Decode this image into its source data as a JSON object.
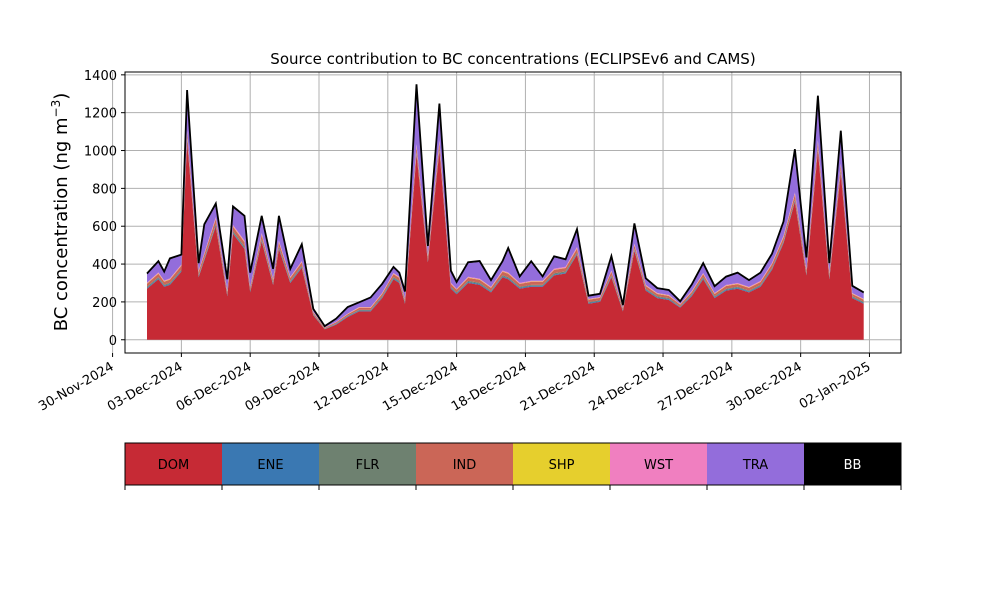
{
  "chart_data": {
    "type": "area",
    "title": "Source contribution to BC concentrations (ECLIPSEv6 and CAMS)",
    "ylabel": "BC concentration (ng m",
    "ylabel_sup": "−3",
    "ylabel_close": ")",
    "xlabel": "",
    "ylim": [
      -70,
      1415
    ],
    "xlim": [
      "2024-11-30T13:00",
      "2025-01-03T09:00"
    ],
    "grid": true,
    "stacked": true,
    "yticks": [
      0,
      200,
      400,
      600,
      800,
      1000,
      1200,
      1400
    ],
    "xticks": [
      "2024-11-30",
      "2024-12-03",
      "2024-12-06",
      "2024-12-09",
      "2024-12-12",
      "2024-12-15",
      "2024-12-18",
      "2024-12-21",
      "2024-12-24",
      "2024-12-27",
      "2024-12-30",
      "2025-01-02"
    ],
    "xtick_labels": [
      "30-Nov-2024",
      "03-Dec-2024",
      "06-Dec-2024",
      "09-Dec-2024",
      "12-Dec-2024",
      "15-Dec-2024",
      "18-Dec-2024",
      "21-Dec-2024",
      "24-Dec-2024",
      "27-Dec-2024",
      "30-Dec-2024",
      "02-Jan-2025"
    ],
    "x": [
      "2024-12-01T12:00",
      "2024-12-02T00:00",
      "2024-12-02T06:00",
      "2024-12-02T12:00",
      "2024-12-03T00:00",
      "2024-12-03T06:00",
      "2024-12-03T18:00",
      "2024-12-04T00:00",
      "2024-12-04T12:00",
      "2024-12-05T00:00",
      "2024-12-05T06:00",
      "2024-12-05T18:00",
      "2024-12-06T00:00",
      "2024-12-06T12:00",
      "2024-12-07T00:00",
      "2024-12-07T06:00",
      "2024-12-07T18:00",
      "2024-12-08T06:00",
      "2024-12-08T18:00",
      "2024-12-09T06:00",
      "2024-12-09T18:00",
      "2024-12-10T06:00",
      "2024-12-10T18:00",
      "2024-12-11T06:00",
      "2024-12-11T18:00",
      "2024-12-12T06:00",
      "2024-12-12T12:00",
      "2024-12-12T18:00",
      "2024-12-13T06:00",
      "2024-12-13T18:00",
      "2024-12-14T06:00",
      "2024-12-14T18:00",
      "2024-12-15T00:00",
      "2024-12-15T12:00",
      "2024-12-16T00:00",
      "2024-12-16T12:00",
      "2024-12-17T00:00",
      "2024-12-17T06:00",
      "2024-12-17T18:00",
      "2024-12-18T06:00",
      "2024-12-18T18:00",
      "2024-12-19T06:00",
      "2024-12-19T18:00",
      "2024-12-20T06:00",
      "2024-12-20T18:00",
      "2024-12-21T06:00",
      "2024-12-21T18:00",
      "2024-12-22T06:00",
      "2024-12-22T18:00",
      "2024-12-23T06:00",
      "2024-12-23T18:00",
      "2024-12-24T06:00",
      "2024-12-24T18:00",
      "2024-12-25T06:00",
      "2024-12-25T18:00",
      "2024-12-26T06:00",
      "2024-12-26T18:00",
      "2024-12-27T06:00",
      "2024-12-27T18:00",
      "2024-12-28T06:00",
      "2024-12-28T18:00",
      "2024-12-29T06:00",
      "2024-12-29T18:00",
      "2024-12-30T06:00",
      "2024-12-30T18:00",
      "2024-12-31T06:00",
      "2024-12-31T18:00",
      "2025-01-01T06:00",
      "2025-01-01T18:00"
    ],
    "series": [
      {
        "name": "DOM",
        "color": "#c62a35",
        "values": [
          270,
          320,
          280,
          290,
          360,
          1050,
          330,
          420,
          600,
          230,
          560,
          480,
          250,
          520,
          290,
          480,
          300,
          380,
          130,
          55,
          80,
          120,
          150,
          150,
          220,
          320,
          300,
          190,
          980,
          410,
          1000,
          270,
          240,
          300,
          290,
          250,
          330,
          320,
          270,
          280,
          280,
          340,
          350,
          450,
          190,
          200,
          330,
          150,
          470,
          260,
          220,
          210,
          170,
          230,
          320,
          220,
          260,
          270,
          250,
          280,
          370,
          510,
          730,
          340,
          1000,
          320,
          880,
          220,
          190
        ]
      },
      {
        "name": "ENE",
        "color": "#3a78b2",
        "values": [
          5,
          5,
          5,
          5,
          5,
          5,
          5,
          5,
          5,
          5,
          5,
          5,
          5,
          5,
          5,
          5,
          5,
          5,
          3,
          2,
          3,
          4,
          4,
          4,
          5,
          5,
          5,
          5,
          5,
          5,
          5,
          5,
          5,
          5,
          5,
          5,
          5,
          5,
          5,
          5,
          5,
          5,
          5,
          5,
          5,
          5,
          5,
          4,
          5,
          5,
          5,
          5,
          3,
          5,
          5,
          5,
          5,
          5,
          5,
          5,
          5,
          5,
          5,
          5,
          5,
          5,
          5,
          5,
          5
        ]
      },
      {
        "name": "FLR",
        "color": "#6e8170",
        "values": [
          6,
          6,
          6,
          6,
          6,
          8,
          6,
          6,
          8,
          5,
          8,
          8,
          5,
          8,
          6,
          8,
          6,
          6,
          3,
          2,
          3,
          3,
          4,
          4,
          5,
          6,
          6,
          5,
          8,
          6,
          8,
          5,
          5,
          6,
          6,
          5,
          6,
          6,
          5,
          5,
          5,
          6,
          6,
          6,
          4,
          4,
          6,
          4,
          6,
          5,
          5,
          5,
          3,
          5,
          6,
          5,
          5,
          5,
          5,
          5,
          6,
          6,
          8,
          6,
          8,
          6,
          8,
          5,
          5
        ]
      },
      {
        "name": "IND",
        "color": "#cb6657",
        "values": [
          15,
          18,
          16,
          17,
          20,
          30,
          18,
          20,
          25,
          14,
          24,
          22,
          14,
          22,
          16,
          22,
          16,
          18,
          8,
          4,
          6,
          8,
          10,
          10,
          12,
          16,
          16,
          12,
          30,
          20,
          30,
          15,
          14,
          16,
          16,
          14,
          18,
          18,
          15,
          16,
          16,
          18,
          18,
          20,
          12,
          12,
          18,
          10,
          20,
          14,
          12,
          12,
          10,
          12,
          16,
          12,
          14,
          14,
          14,
          15,
          18,
          20,
          25,
          18,
          30,
          18,
          28,
          12,
          12
        ]
      },
      {
        "name": "SHP",
        "color": "#e6cf2d",
        "values": [
          2,
          2,
          2,
          2,
          2,
          3,
          2,
          2,
          3,
          2,
          3,
          3,
          2,
          3,
          2,
          3,
          2,
          2,
          1,
          1,
          1,
          1,
          2,
          2,
          2,
          2,
          2,
          2,
          3,
          2,
          3,
          2,
          2,
          2,
          2,
          2,
          2,
          2,
          2,
          2,
          2,
          2,
          2,
          3,
          2,
          2,
          2,
          1,
          2,
          2,
          2,
          2,
          1,
          2,
          2,
          2,
          2,
          2,
          2,
          2,
          2,
          3,
          3,
          2,
          3,
          2,
          3,
          2,
          2
        ]
      },
      {
        "name": "WST",
        "color": "#f07fc0",
        "values": [
          4,
          5,
          4,
          4,
          5,
          8,
          5,
          5,
          7,
          4,
          7,
          6,
          4,
          6,
          4,
          6,
          4,
          5,
          2,
          1,
          2,
          2,
          3,
          3,
          3,
          4,
          4,
          3,
          8,
          5,
          8,
          4,
          4,
          4,
          4,
          4,
          5,
          5,
          4,
          4,
          4,
          5,
          5,
          6,
          3,
          3,
          5,
          3,
          5,
          4,
          3,
          3,
          3,
          3,
          4,
          3,
          4,
          4,
          4,
          4,
          5,
          6,
          7,
          5,
          8,
          5,
          7,
          3,
          3
        ]
      },
      {
        "name": "TRA",
        "color": "#936ddb",
        "values": [
          43,
          54,
          42,
          101,
          47,
          206,
          34,
          147,
          62,
          55,
          91,
          126,
          70,
          86,
          47,
          126,
          37,
          84,
          13,
          5,
          15,
          32,
          22,
          47,
          43,
          27,
          17,
          33,
          306,
          43,
          184,
          59,
          30,
          72,
          88,
          30,
          44,
          124,
          29,
          98,
          18,
          60,
          34,
          90,
          14,
          14,
          71,
          8,
          102,
          30,
          23,
          23,
          10,
          32,
          47,
          33,
          39,
          50,
          30,
          39,
          44,
          70,
          222,
          54,
          226,
          44,
          169,
          33,
          28
        ]
      },
      {
        "name": "BB",
        "color": "#000000",
        "values": [
          5,
          5,
          5,
          5,
          5,
          10,
          5,
          5,
          10,
          5,
          7,
          5,
          5,
          5,
          5,
          5,
          5,
          5,
          3,
          2,
          2,
          3,
          3,
          4,
          5,
          5,
          5,
          5,
          10,
          5,
          10,
          5,
          5,
          5,
          5,
          5,
          5,
          5,
          5,
          5,
          5,
          5,
          5,
          5,
          3,
          3,
          5,
          3,
          5,
          5,
          3,
          3,
          3,
          3,
          5,
          3,
          5,
          5,
          5,
          5,
          5,
          5,
          7,
          5,
          10,
          5,
          5,
          5,
          5
        ]
      }
    ],
    "total_line_color": "#000000",
    "legend_placement": "bottom"
  }
}
